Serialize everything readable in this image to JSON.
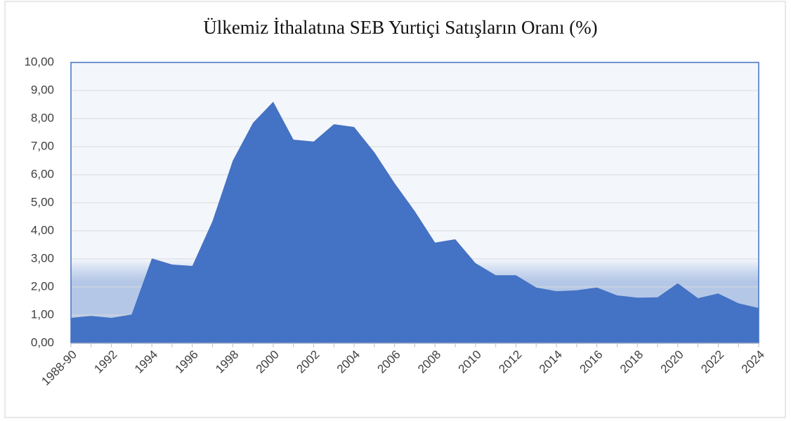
{
  "chart_data": {
    "type": "area",
    "title": "Ülkemiz İthalatına SEB Yurtiçi Satışların Oranı (%)",
    "categories": [
      "1988-90",
      null,
      "1992",
      null,
      "1994",
      null,
      "1996",
      null,
      "1998",
      null,
      "2000",
      null,
      "2002",
      null,
      "2004",
      null,
      "2006",
      null,
      "2008",
      null,
      "2010",
      null,
      "2012",
      null,
      "2014",
      null,
      "2016",
      null,
      "2018",
      null,
      "2020",
      null,
      "2022",
      null,
      "2024"
    ],
    "values": [
      0.9,
      0.97,
      0.9,
      1.02,
      3.02,
      2.8,
      2.75,
      4.35,
      6.5,
      7.85,
      8.6,
      7.25,
      7.18,
      7.8,
      7.7,
      6.8,
      5.7,
      4.7,
      3.58,
      3.7,
      2.85,
      2.42,
      2.42,
      1.98,
      1.85,
      1.88,
      1.98,
      1.7,
      1.62,
      1.63,
      2.13,
      1.6,
      1.77,
      1.42,
      1.25
    ],
    "color": "#4472c4",
    "ylim": [
      0,
      10
    ],
    "yticks": [
      {
        "value": 0,
        "label": "0,00"
      },
      {
        "value": 1,
        "label": "1,00"
      },
      {
        "value": 2,
        "label": "2,00"
      },
      {
        "value": 3,
        "label": "3,00"
      },
      {
        "value": 4,
        "label": "4,00"
      },
      {
        "value": 5,
        "label": "5,00"
      },
      {
        "value": 6,
        "label": "6,00"
      },
      {
        "value": 7,
        "label": "7,00"
      },
      {
        "value": 8,
        "label": "8,00"
      },
      {
        "value": 9,
        "label": "9,00"
      },
      {
        "value": 10,
        "label": "10,00"
      }
    ],
    "grid": true
  }
}
